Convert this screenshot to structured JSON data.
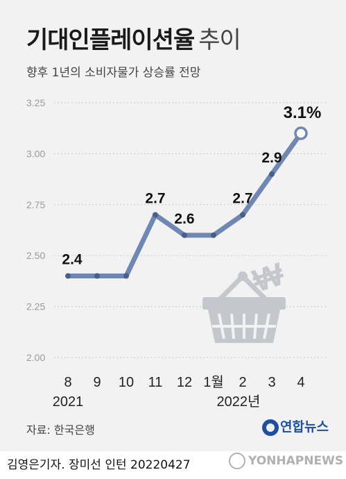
{
  "header": {
    "title_bold": "기대인플레이션율",
    "title_light": "추이",
    "subtitle": "향후 1년의 소비자물가 상승률 전망"
  },
  "chart_data": {
    "type": "line",
    "title": "기대인플레이션율 추이",
    "subtitle": "향후 1년의 소비자물가 상승률 전망",
    "categories": [
      "8",
      "9",
      "10",
      "11",
      "12",
      "1월",
      "2",
      "3",
      "4"
    ],
    "year_labels": [
      {
        "label": "2021",
        "at": "8"
      },
      {
        "label": "2022년",
        "at": "2"
      }
    ],
    "series": [
      {
        "values": [
          2.4,
          2.4,
          2.4,
          2.7,
          2.6,
          2.6,
          2.7,
          2.9,
          3.1
        ]
      }
    ],
    "data_labels": [
      {
        "index": 0,
        "text": "2.4"
      },
      {
        "index": 3,
        "text": "2.7"
      },
      {
        "index": 4,
        "text": "2.6"
      },
      {
        "index": 6,
        "text": "2.7"
      },
      {
        "index": 7,
        "text": "2.9"
      },
      {
        "index": 8,
        "text": "3.1%"
      }
    ],
    "yticks": [
      "3.25",
      "3.00",
      "2.75",
      "2.50",
      "2.25",
      "2.00"
    ],
    "ylim": [
      2.0,
      3.25
    ],
    "grid": true,
    "line_color": "#6f87b3",
    "grid_color": "#c8c8c8"
  },
  "footer": {
    "source": "자료: 한국은행",
    "agency": "연합뉴스",
    "credit": "김영은기자. 장미선 인턴 20220427",
    "logo": "YONHAPNEWS"
  },
  "icons": [
    "shopping-basket-icon",
    "won-symbol-icon"
  ]
}
